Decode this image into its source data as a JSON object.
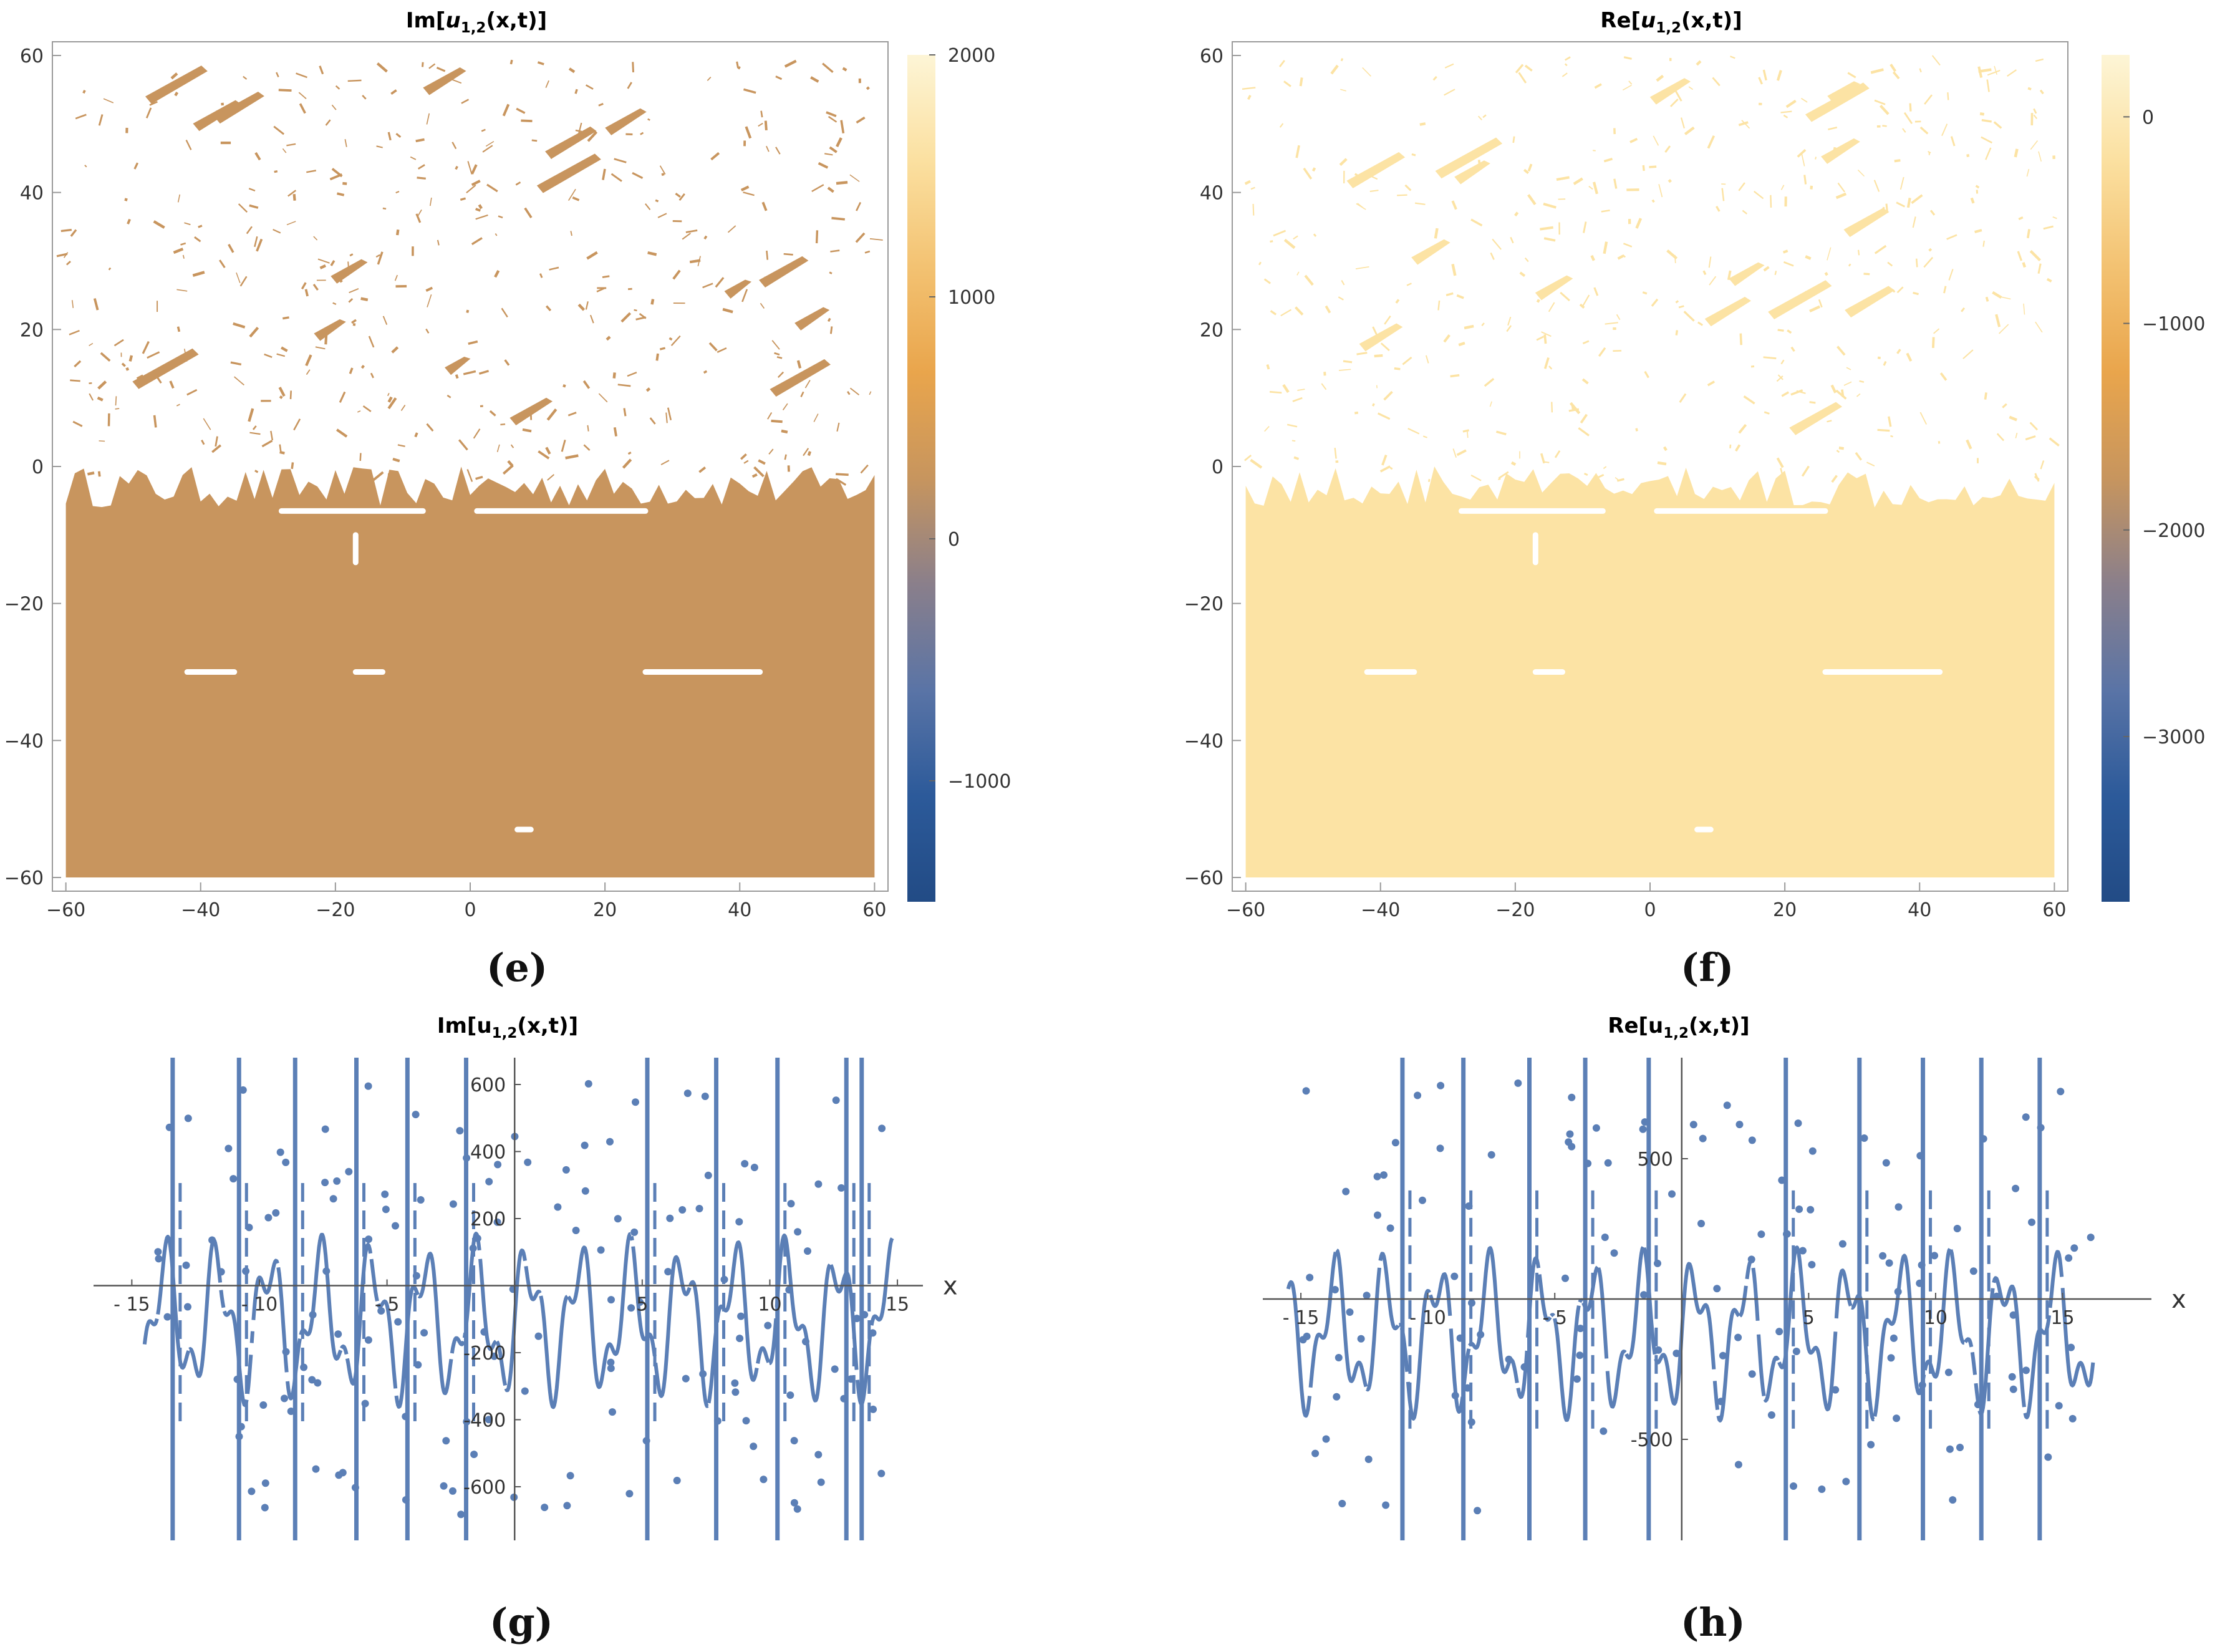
{
  "figure": {
    "panel_labels": {
      "e": "(e)",
      "f": "(f)",
      "g": "(g)",
      "h": "(h)"
    }
  },
  "colors": {
    "im_fill": "#c8955e",
    "re_fill": "#fce3a4",
    "line": "#5b7fb6",
    "cb_stops": [
      "#fdf5d6",
      "#fbe0a0",
      "#f3c272",
      "#e9a54c",
      "#c7955e",
      "#8a7f8b",
      "#5a74a6",
      "#2c5a9a",
      "#224b85"
    ]
  },
  "chart_data": [
    {
      "id": "e",
      "type": "heatmap",
      "title": "Im[u1,2(x,t)]",
      "title_base": "Im[",
      "title_var": "u",
      "title_sub": "1,2",
      "title_end": "(x,t)]",
      "xlim": [
        -62,
        62
      ],
      "ylim": [
        -62,
        62
      ],
      "xticks": [
        -60,
        -40,
        -20,
        0,
        20,
        40,
        60
      ],
      "xtick_labels": [
        "−60",
        "−40",
        "−20",
        "0",
        "20",
        "40",
        "60"
      ],
      "yticks": [
        60,
        40,
        20,
        0,
        -20,
        -40,
        -60
      ],
      "ytick_labels": [
        "60",
        "40",
        "20",
        "0",
        "−20",
        "−40",
        "−60"
      ],
      "fill_region": {
        "t_from": -60,
        "t_to": -5,
        "noise_above_t": 0
      },
      "colorbar": {
        "min": -1500,
        "max": 2000,
        "ticks": [
          2000,
          1000,
          0,
          -1000
        ],
        "tick_labels": [
          "2000",
          "1000",
          "0",
          "−1000"
        ],
        "reversed": false
      }
    },
    {
      "id": "f",
      "type": "heatmap",
      "title": "Re[u1,2(x,t)]",
      "title_base": "Re[",
      "title_var": "u",
      "title_sub": "1,2",
      "title_end": "(x,t)]",
      "xlim": [
        -62,
        62
      ],
      "ylim": [
        -62,
        62
      ],
      "xticks": [
        -60,
        -40,
        -20,
        0,
        20,
        40,
        60
      ],
      "xtick_labels": [
        "−60",
        "−40",
        "−20",
        "0",
        "20",
        "40",
        "60"
      ],
      "yticks": [
        60,
        40,
        20,
        0,
        -20,
        -40,
        -60
      ],
      "ytick_labels": [
        "60",
        "40",
        "20",
        "0",
        "−20",
        "−40",
        "−60"
      ],
      "fill_region": {
        "t_from": -60,
        "t_to": -5,
        "noise_above_t": 0
      },
      "colorbar": {
        "min": -3800,
        "max": 300,
        "ticks": [
          0,
          -1000,
          -2000,
          -3000
        ],
        "tick_labels": [
          "0",
          "−1000",
          "−2000",
          "−3000"
        ],
        "reversed": true
      }
    },
    {
      "id": "g",
      "type": "line",
      "title": "Im[u1,2(x,t)]",
      "title_base": "Im[u",
      "title_sub": "1,2",
      "title_end": "(x,t)]",
      "xlabel": "x",
      "xlim": [
        -16.5,
        16
      ],
      "ylim": [
        -760,
        680
      ],
      "xticks": [
        -15,
        -10,
        -5,
        5,
        10,
        15
      ],
      "xtick_labels": [
        "- 15",
        "- 10",
        "- 5",
        "5",
        "10",
        "15"
      ],
      "yticks": [
        600,
        400,
        200,
        -200,
        -400,
        -600
      ],
      "ytick_labels": [
        "600",
        "400",
        "200",
        "-200",
        "-400",
        "-600"
      ],
      "series": [
        {
          "name": "Im u",
          "x_range": [
            -14.5,
            14.8
          ],
          "spike_x": [
            -13.4,
            -10.8,
            -8.6,
            -6.2,
            -4.2,
            -1.9,
            5.2,
            7.9,
            10.3,
            13.0,
            13.6
          ],
          "scatter_points": 150
        }
      ]
    },
    {
      "id": "h",
      "type": "line",
      "title": "Re[u1,2(x,t)]",
      "title_base": "Re[u",
      "title_sub": "1,2",
      "title_end": "(x,t)]",
      "xlabel": "x",
      "xlim": [
        -16.5,
        18.5
      ],
      "ylim": [
        -860,
        860
      ],
      "xticks": [
        -15,
        -10,
        -5,
        5,
        10,
        15
      ],
      "xtick_labels": [
        "- 15",
        "- 10",
        "- 5",
        "5",
        "10",
        "15"
      ],
      "yticks": [
        500,
        -500
      ],
      "ytick_labels": [
        "500",
        "-500"
      ],
      "series": [
        {
          "name": "Re u",
          "x_range": [
            -15.5,
            16.2
          ],
          "spike_x": [
            -11.0,
            -8.6,
            -6.0,
            -3.8,
            -1.3,
            4.1,
            7.0,
            9.5,
            11.8,
            14.1
          ],
          "scatter_points": 130
        }
      ]
    }
  ]
}
